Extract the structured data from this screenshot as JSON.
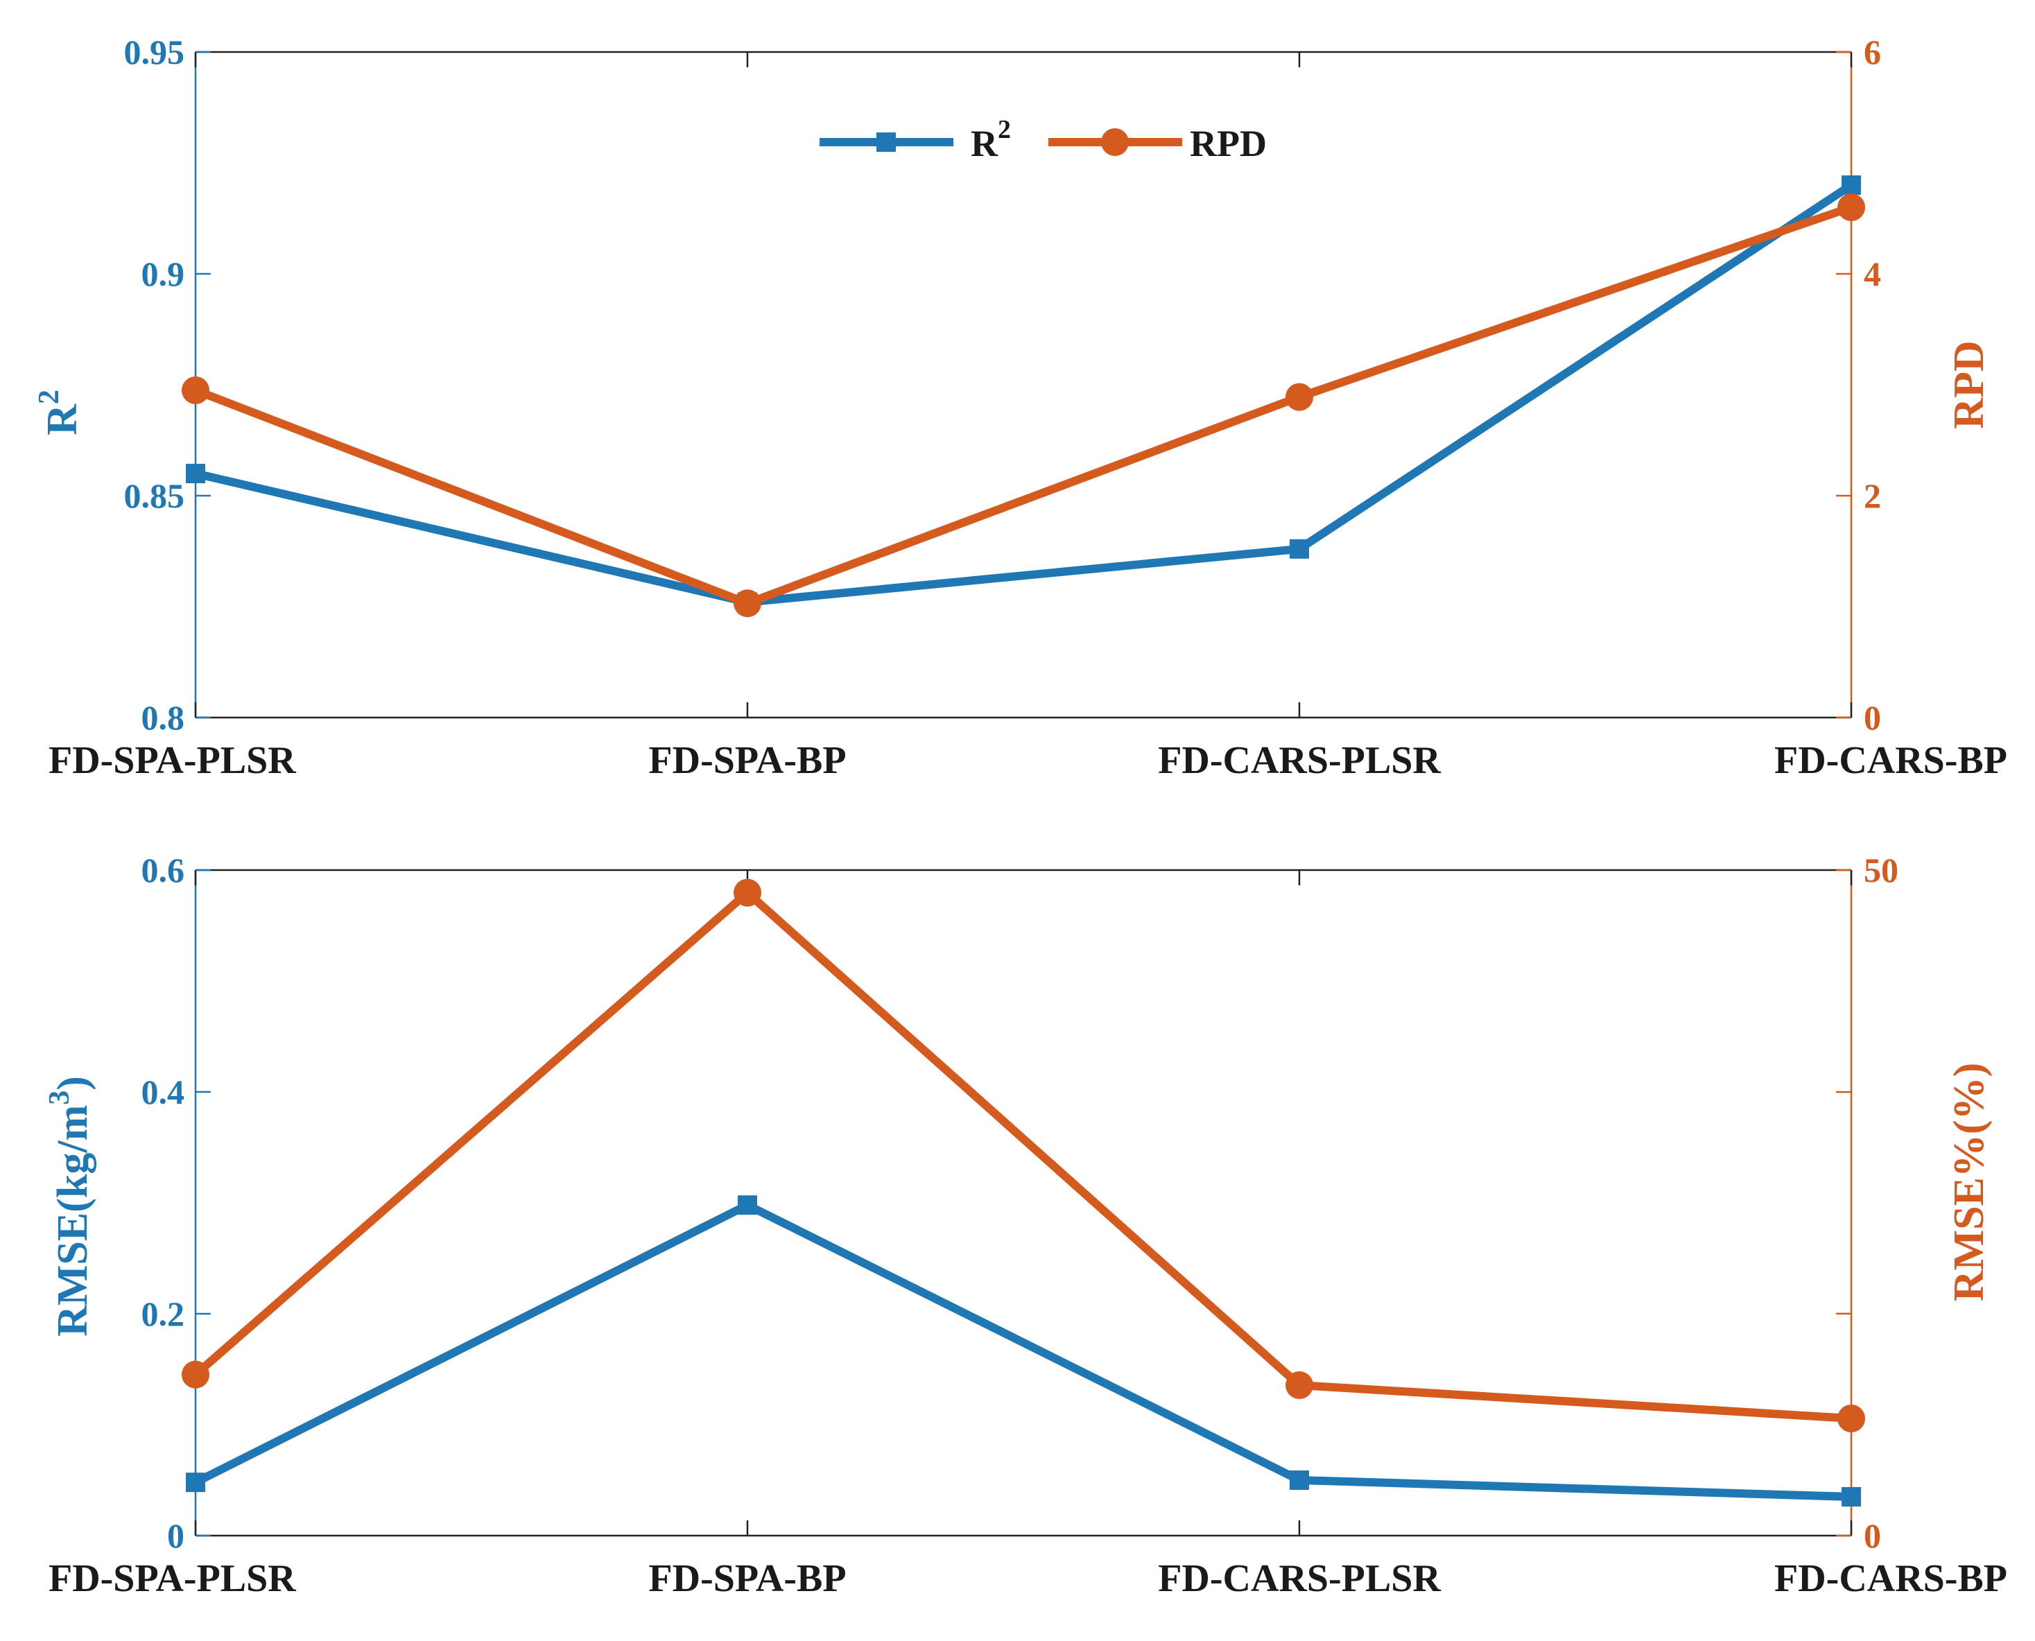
{
  "colors": {
    "left": "#1f77b4",
    "right": "#d45a1e",
    "axis": "#222222"
  },
  "chart_data": [
    {
      "type": "line",
      "categories": [
        "FD-SPA-PLSR",
        "FD-SPA-BP",
        "FD-CARS-PLSR",
        "FD-CARS-BP"
      ],
      "left_axis": {
        "label_main": "R",
        "label_sup": "2",
        "ylim": [
          0.8,
          0.95
        ],
        "ticks": [
          0.8,
          0.85,
          0.9,
          0.95
        ],
        "tick_labels": [
          "0.8",
          "0.85",
          "0.9",
          "0.95"
        ]
      },
      "right_axis": {
        "label": "RPD",
        "ylim": [
          0,
          6
        ],
        "ticks": [
          0,
          2,
          4,
          6
        ],
        "tick_labels": [
          "0",
          "2",
          "4",
          "6"
        ]
      },
      "series": [
        {
          "name": "R",
          "name_sup": "2",
          "axis": "left",
          "marker": "square",
          "values": [
            0.855,
            0.826,
            0.838,
            0.92
          ]
        },
        {
          "name": "RPD",
          "axis": "right",
          "marker": "circle",
          "values": [
            2.95,
            1.03,
            2.89,
            4.6
          ]
        }
      ],
      "legend": "upper-center"
    },
    {
      "type": "line",
      "categories": [
        "FD-SPA-PLSR",
        "FD-SPA-BP",
        "FD-CARS-PLSR",
        "FD-CARS-BP"
      ],
      "left_axis": {
        "label_main": "RMSE(kg/m",
        "label_sup": "3",
        "label_end": ")",
        "ylim": [
          0,
          0.6
        ],
        "ticks": [
          0,
          0.2,
          0.4,
          0.6
        ],
        "tick_labels": [
          "0",
          "0.2",
          "0.4",
          "0.6"
        ]
      },
      "right_axis": {
        "label": "RMSE%(%)",
        "ylim": [
          0,
          50
        ],
        "ticks": [
          0,
          16.67,
          33.33,
          50
        ],
        "tick_labels": [
          "0",
          "",
          "",
          "50"
        ]
      },
      "series": [
        {
          "name": "RMSE",
          "axis": "left",
          "marker": "square",
          "values": [
            0.048,
            0.298,
            0.05,
            0.035
          ]
        },
        {
          "name": "RMSE%",
          "axis": "right",
          "marker": "circle",
          "values": [
            12.1,
            48.3,
            11.3,
            8.8
          ]
        }
      ]
    }
  ]
}
